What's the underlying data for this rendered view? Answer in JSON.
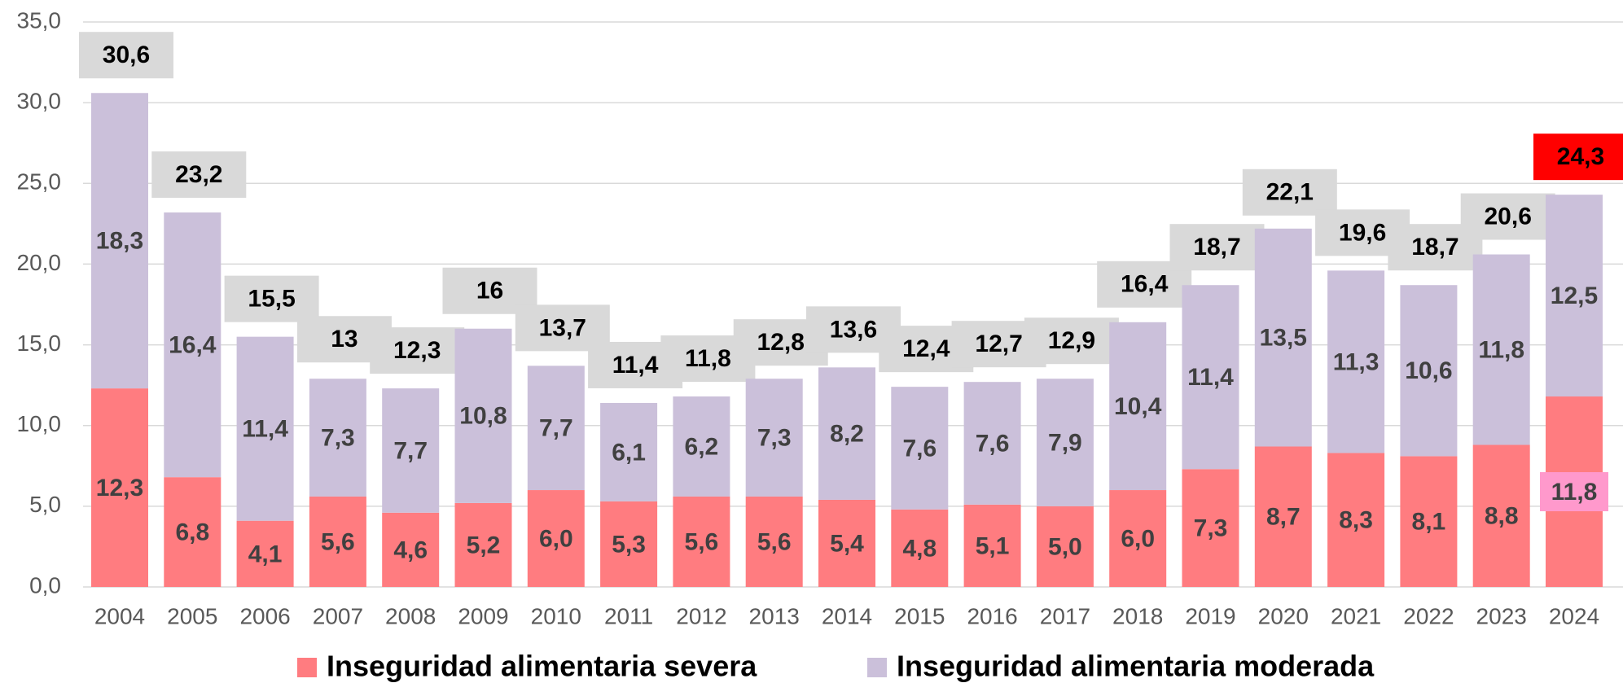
{
  "chart_data": {
    "type": "stacked_bar",
    "categories": [
      "2004",
      "2005",
      "2006",
      "2007",
      "2008",
      "2009",
      "2010",
      "2011",
      "2012",
      "2013",
      "2014",
      "2015",
      "2016",
      "2017",
      "2018",
      "2019",
      "2020",
      "2021",
      "2022",
      "2023",
      "2024"
    ],
    "series": [
      {
        "name": "Inseguridad alimentaria severa",
        "color": "#ff7c80",
        "values": [
          12.3,
          6.8,
          4.1,
          5.6,
          4.6,
          5.2,
          6.0,
          5.3,
          5.6,
          5.6,
          5.4,
          4.8,
          5.1,
          5.0,
          6.0,
          7.3,
          8.7,
          8.3,
          8.1,
          8.8,
          11.8
        ],
        "value_labels": [
          "12,3",
          "6,8",
          "4,1",
          "5,6",
          "4,6",
          "5,2",
          "6,0",
          "5,3",
          "5,6",
          "5,6",
          "5,4",
          "4,8",
          "5,1",
          "5,0",
          "6,0",
          "7,3",
          "8,7",
          "8,3",
          "8,1",
          "8,8",
          "11,8"
        ]
      },
      {
        "name": "Inseguridad alimentaria moderada",
        "color": "#cbc0da",
        "values": [
          18.3,
          16.4,
          11.4,
          7.3,
          7.7,
          10.8,
          7.7,
          6.1,
          6.2,
          7.3,
          8.2,
          7.6,
          7.6,
          7.9,
          10.4,
          11.4,
          13.5,
          11.3,
          10.6,
          11.8,
          12.5
        ],
        "value_labels": [
          "18,3",
          "16,4",
          "11,4",
          "7,3",
          "7,7",
          "10,8",
          "7,7",
          "6,1",
          "6,2",
          "7,3",
          "8,2",
          "7,6",
          "7,6",
          "7,9",
          "10,4",
          "11,4",
          "13,5",
          "11,3",
          "10,6",
          "11,8",
          "12,5"
        ]
      }
    ],
    "totals": [
      30.6,
      23.2,
      15.5,
      13,
      12.3,
      16,
      13.7,
      11.4,
      11.8,
      12.8,
      13.6,
      12.4,
      12.7,
      12.9,
      16.4,
      18.7,
      22.1,
      19.6,
      18.7,
      20.6,
      24.3
    ],
    "total_labels": [
      "30,6",
      "23,2",
      "15,5",
      "13",
      "12,3",
      "16",
      "13,7",
      "11,4",
      "11,8",
      "12,8",
      "13,6",
      "12,4",
      "12,7",
      "12,9",
      "16,4",
      "18,7",
      "22,1",
      "19,6",
      "18,7",
      "20,6",
      "24,3"
    ],
    "total_box_color": "#d9d9d9",
    "highlight": {
      "index": 20,
      "total_box_color": "#ff0000",
      "label_box_color": "#ff99cc"
    },
    "ylim": [
      0,
      35
    ],
    "yticks": [
      {
        "value": 0,
        "label": "0,0"
      },
      {
        "value": 5,
        "label": "5,0"
      },
      {
        "value": 10,
        "label": "10,0"
      },
      {
        "value": 15,
        "label": "15,0"
      },
      {
        "value": 20,
        "label": "20,0"
      },
      {
        "value": 25,
        "label": "25,0"
      },
      {
        "value": 30,
        "label": "30,0"
      },
      {
        "value": 35,
        "label": "35,0"
      }
    ],
    "grid": true,
    "legend": "bottom"
  }
}
